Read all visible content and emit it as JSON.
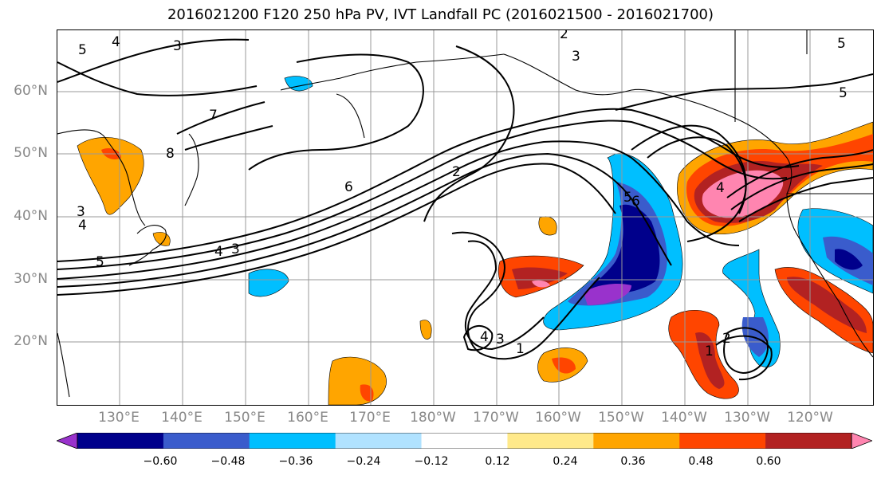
{
  "title": "2016021200 F120 250 hPa PV, IVT Landfall PC (2016021500 - 2016021700)",
  "lat_labels": [
    "60°N",
    "50°N",
    "40°N",
    "30°N",
    "20°N"
  ],
  "lon_labels": [
    "130°E",
    "140°E",
    "150°E",
    "160°E",
    "170°E",
    "180°W",
    "170°W",
    "160°W",
    "150°W",
    "140°W",
    "130°W",
    "120°W"
  ],
  "colorbar": {
    "colors": [
      "#9932cc",
      "#00008b",
      "#3a5ccc",
      "#00bfff",
      "#b0e2ff",
      "#ffffff",
      "#ffe98a",
      "#ffa500",
      "#ff4500",
      "#b22222",
      "#ff85b0"
    ],
    "tick_labels": [
      "−0.60",
      "−0.48",
      "−0.36",
      "−0.24",
      "−0.12",
      "0.12",
      "0.24",
      "0.36",
      "0.48",
      "0.60"
    ]
  },
  "contour_labels": [
    "5",
    "4",
    "3",
    "2",
    "3",
    "5",
    "5",
    "7",
    "8",
    "6",
    "2",
    "3",
    "4",
    "5",
    "4",
    "3",
    "6",
    "5",
    "4",
    "4",
    "3",
    "1",
    "2",
    "1"
  ]
}
